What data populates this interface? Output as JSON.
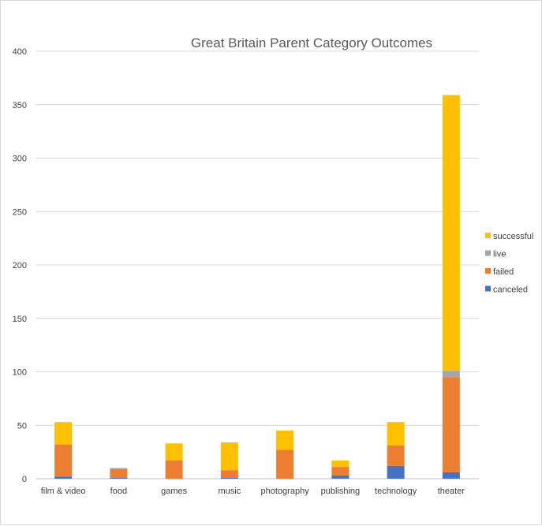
{
  "chart_data": {
    "type": "bar",
    "stacked": true,
    "title": "Great Britain Parent Category Outcomes",
    "xlabel": "",
    "ylabel": "",
    "ylim": [
      0,
      400
    ],
    "yticks": [
      "0",
      "50",
      "100",
      "150",
      "200",
      "250",
      "300",
      "350",
      "400"
    ],
    "grid": true,
    "legend_position": "right",
    "categories": [
      "film & video",
      "food",
      "games",
      "music",
      "photography",
      "publishing",
      "technology",
      "theater"
    ],
    "series": [
      {
        "name": "canceled",
        "color": "#4472c4",
        "values": [
          2,
          1,
          0,
          1,
          0,
          3,
          12,
          6
        ]
      },
      {
        "name": "failed",
        "color": "#ed7d31",
        "values": [
          30,
          8,
          17,
          7,
          27,
          8,
          19,
          89
        ]
      },
      {
        "name": "live",
        "color": "#a5a5a5",
        "values": [
          0,
          1,
          0,
          0,
          0,
          0,
          0,
          6
        ]
      },
      {
        "name": "successful",
        "color": "#ffc000",
        "values": [
          21,
          0,
          16,
          26,
          18,
          6,
          22,
          258
        ]
      }
    ]
  }
}
